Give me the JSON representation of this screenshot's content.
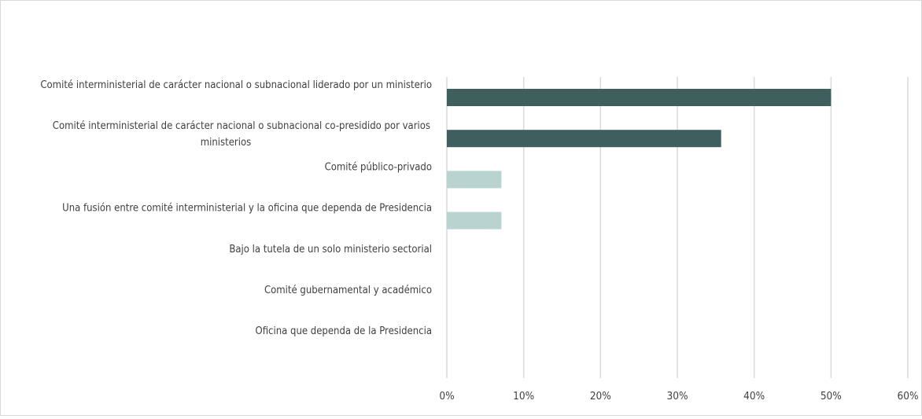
{
  "chart_data": {
    "type": "bar",
    "orientation": "horizontal",
    "categories": [
      [
        "Comité interministerial de carácter nacional o subnacional liderado por un ministerio"
      ],
      [
        "Comité interministerial de carácter nacional o subnacional co-presidido por varios",
        "ministerios"
      ],
      [
        "Comité público-privado"
      ],
      [
        "Una fusión entre comité interministerial y la oficina que dependa de Presidencia"
      ],
      [
        "Bajo la tutela de un solo ministerio sectorial"
      ],
      [
        "Comité gubernamental y académico"
      ],
      [
        "Oficina que dependa de la Presidencia"
      ]
    ],
    "values": [
      50,
      35.7,
      7.1,
      7.1,
      0,
      0,
      0
    ],
    "bar_colors": [
      "#3e5f5d",
      "#3e5f5d",
      "#b8d3d0",
      "#b8d3d0",
      "#b8d3d0",
      "#b8d3d0",
      "#b8d3d0"
    ],
    "xlim": [
      0,
      60
    ],
    "x_ticks": [
      0,
      10,
      20,
      30,
      40,
      50,
      60
    ],
    "x_tick_labels": [
      "0%",
      "10%",
      "20%",
      "30%",
      "40%",
      "50%",
      "60%"
    ],
    "grid": "vertical",
    "grid_color": "#d9d9d9",
    "title": "",
    "xlabel": "",
    "ylabel": "",
    "legend": "none"
  }
}
